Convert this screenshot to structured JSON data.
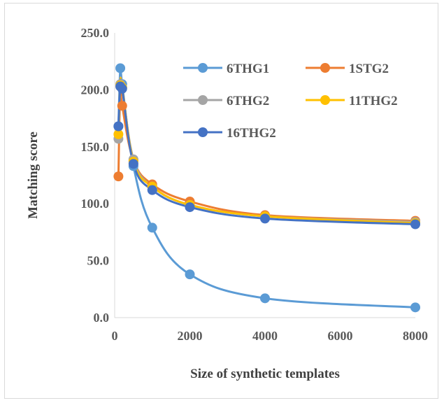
{
  "chart_data": {
    "type": "line",
    "title": "",
    "xlabel": "Size of synthetic templates",
    "ylabel": "Matching score",
    "xlim": [
      0,
      8000
    ],
    "ylim": [
      0,
      250
    ],
    "xticks": [
      0,
      2000,
      4000,
      6000,
      8000
    ],
    "yticks": [
      0,
      50,
      100,
      150,
      200,
      250
    ],
    "ytick_labels": [
      "0.0",
      "50.0",
      "100.0",
      "150.0",
      "200.0",
      "250.0"
    ],
    "grid": false,
    "legend_position": "top-right, inside plot",
    "series": [
      {
        "name": "6THG1",
        "color": "#5b9bd5",
        "x": [
          100,
          150,
          200,
          500,
          1000,
          2000,
          4000,
          8000
        ],
        "y": [
          168,
          219,
          205,
          133,
          79,
          38,
          17,
          9
        ]
      },
      {
        "name": "1STG2",
        "color": "#ed7d31",
        "x": [
          100,
          150,
          200,
          500,
          1000,
          2000,
          4000,
          8000
        ],
        "y": [
          124,
          203,
          186,
          138,
          117,
          102,
          90,
          85
        ]
      },
      {
        "name": "6THG2",
        "color": "#a5a5a5",
        "x": [
          100,
          150,
          200,
          500,
          1000,
          2000,
          4000,
          8000
        ],
        "y": [
          157,
          205,
          202,
          139,
          115,
          99,
          89,
          84
        ]
      },
      {
        "name": "11THG2",
        "color": "#ffc000",
        "x": [
          100,
          150,
          200,
          500,
          1000,
          2000,
          4000,
          8000
        ],
        "y": [
          161,
          204,
          202,
          137,
          115,
          99,
          89,
          83
        ]
      },
      {
        "name": "16THG2",
        "color": "#4472c4",
        "x": [
          100,
          150,
          200,
          500,
          1000,
          2000,
          4000,
          8000
        ],
        "y": [
          168,
          203,
          201,
          135,
          112,
          97,
          87,
          82
        ]
      }
    ]
  }
}
